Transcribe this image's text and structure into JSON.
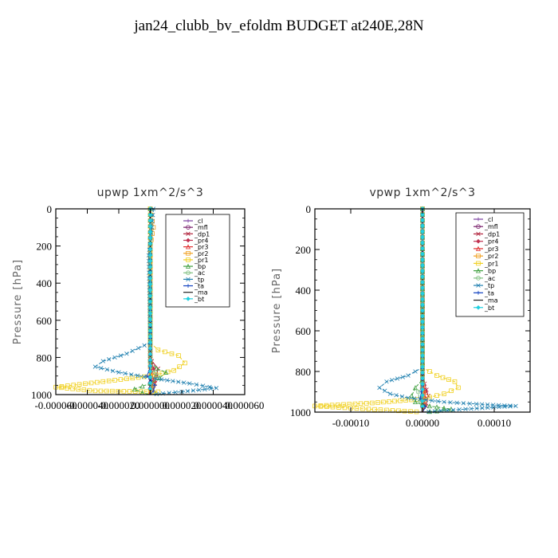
{
  "title": "jan24_clubb_bv_efoldm  BUDGET at240E,28N",
  "chart_data": [
    {
      "type": "line",
      "title": "upwp   1xm^2/s^3",
      "ylabel": "Pressure [hPa]",
      "ylim": [
        1000,
        0
      ],
      "xlim": [
        -6e-05,
        6e-05
      ],
      "xticks": [
        -6e-05,
        -4e-05,
        -2e-05,
        0,
        2e-05,
        4e-05,
        6e-05
      ],
      "xtick_labels": [
        "-0.000060",
        "-0.000040",
        "-0.000020",
        "0.000000",
        "0.000020",
        "0.000040",
        "0.000060"
      ],
      "yticks": [
        0,
        200,
        400,
        600,
        800,
        1000
      ],
      "legend": [
        "_cl",
        "_mfl",
        "_dp1",
        "_pr4",
        "_pr3",
        "_pr2",
        "_pr1",
        "_bp",
        "_ac",
        "_tp",
        "_ta",
        "_ma",
        "_bt"
      ],
      "legend_position": "top-right",
      "series": [
        {
          "name": "_cl",
          "color": "#7a3fa0",
          "x": [
            0,
            0,
            0,
            0,
            0
          ],
          "y": [
            0,
            250,
            500,
            750,
            1000
          ]
        },
        {
          "name": "_mfl",
          "color": "#7a1f6b",
          "x": [
            0,
            0,
            0,
            0,
            0
          ],
          "y": [
            0,
            250,
            500,
            750,
            1000
          ]
        },
        {
          "name": "_dp1",
          "color": "#b0203a",
          "x": [
            0,
            0,
            0,
            1e-06,
            5e-06,
            4e-06,
            3e-06,
            0,
            -1e-06
          ],
          "y": [
            0,
            600,
            780,
            820,
            860,
            900,
            940,
            980,
            1000
          ]
        },
        {
          "name": "_pr4",
          "color": "#c03050",
          "x": [
            0,
            0,
            2e-06,
            4e-06,
            2e-06,
            0
          ],
          "y": [
            0,
            800,
            860,
            900,
            960,
            1000
          ]
        },
        {
          "name": "_pr3",
          "color": "#e03030",
          "x": [
            0,
            0,
            1e-06,
            2e-06,
            1e-06,
            0
          ],
          "y": [
            0,
            800,
            880,
            920,
            970,
            1000
          ]
        },
        {
          "name": "_pr2",
          "color": "#f0a020",
          "x": [
            0,
            2e-06,
            0,
            0,
            2e-06,
            0
          ],
          "y": [
            0,
            100,
            200,
            850,
            950,
            1000
          ]
        },
        {
          "name": "_pr1",
          "color": "#f0d020",
          "x": [
            0,
            0,
            5e-06,
            1.8e-05,
            2.2e-05,
            1.5e-05,
            0,
            -3e-05,
            -6e-05,
            -3.5e-05,
            5e-06,
            0
          ],
          "y": [
            0,
            720,
            760,
            790,
            830,
            870,
            900,
            930,
            960,
            980,
            985,
            1000
          ]
        },
        {
          "name": "_bp",
          "color": "#40a040",
          "x": [
            0,
            0,
            4e-06,
            1e-05,
            6e-06,
            0,
            -1e-05,
            -5e-06,
            0
          ],
          "y": [
            0,
            820,
            860,
            880,
            910,
            940,
            970,
            990,
            1000
          ]
        },
        {
          "name": "_ac",
          "color": "#80c080",
          "x": [
            0,
            0,
            3e-06,
            4e-06,
            2e-06,
            0
          ],
          "y": [
            0,
            850,
            880,
            900,
            950,
            1000
          ]
        },
        {
          "name": "_tp",
          "color": "#2080b0",
          "x": [
            2e-06,
            1e-06,
            -1e-06,
            0,
            -1.5e-05,
            -3e-05,
            -3.5e-05,
            -2e-05,
            0,
            2.5e-05,
            4.2e-05,
            2e-05,
            0
          ],
          "y": [
            0,
            100,
            250,
            720,
            780,
            820,
            850,
            880,
            910,
            940,
            965,
            985,
            1000
          ]
        },
        {
          "name": "_ta",
          "color": "#1040c0",
          "x": [
            0,
            0,
            -2e-06,
            3e-06,
            2e-06,
            0
          ],
          "y": [
            0,
            850,
            900,
            950,
            980,
            1000
          ]
        },
        {
          "name": "_ma",
          "color": "#202020",
          "x": [
            0,
            0,
            0
          ],
          "y": [
            0,
            500,
            1000
          ]
        },
        {
          "name": "_bt",
          "color": "#20d0e0",
          "x": [
            0,
            0,
            0
          ],
          "y": [
            0,
            500,
            1000
          ]
        }
      ]
    },
    {
      "type": "line",
      "title": "vpwp   1xm^2/s^3",
      "ylabel": "Pressure [hPa]",
      "ylim": [
        1000,
        0
      ],
      "xlim": [
        -0.00015,
        0.00015
      ],
      "xticks": [
        -0.0001,
        0,
        0.0001
      ],
      "xtick_labels": [
        "-0.00010",
        "0.00000",
        "0.00010"
      ],
      "yticks": [
        0,
        200,
        400,
        600,
        800,
        1000
      ],
      "legend": [
        "_cl",
        "_mfl",
        "_dp1",
        "_pr4",
        "_pr3",
        "_pr2",
        "_pr1",
        "_bp",
        "_ac",
        "_tp",
        "_ta",
        "_ma",
        "_bt"
      ],
      "legend_position": "top-right",
      "series": [
        {
          "name": "_cl",
          "color": "#7a3fa0",
          "x": [
            0,
            0,
            0,
            0,
            0
          ],
          "y": [
            0,
            250,
            500,
            750,
            1000
          ]
        },
        {
          "name": "_mfl",
          "color": "#7a1f6b",
          "x": [
            0,
            0,
            0,
            0,
            0
          ],
          "y": [
            0,
            250,
            500,
            750,
            1000
          ]
        },
        {
          "name": "_dp1",
          "color": "#b0203a",
          "x": [
            0,
            0,
            3e-06,
            8e-06,
            5e-06,
            0
          ],
          "y": [
            0,
            820,
            860,
            920,
            970,
            1000
          ]
        },
        {
          "name": "_pr4",
          "color": "#c03050",
          "x": [
            0,
            0,
            4e-06,
            3e-06,
            0
          ],
          "y": [
            0,
            850,
            900,
            960,
            1000
          ]
        },
        {
          "name": "_pr3",
          "color": "#e03030",
          "x": [
            0,
            0,
            2e-06,
            0
          ],
          "y": [
            0,
            870,
            930,
            1000
          ]
        },
        {
          "name": "_pr2",
          "color": "#f0a020",
          "x": [
            0,
            0,
            3e-06,
            0
          ],
          "y": [
            0,
            870,
            940,
            1000
          ]
        },
        {
          "name": "_pr1",
          "color": "#f0d020",
          "x": [
            0,
            0,
            2e-05,
            4.5e-05,
            5e-05,
            3e-05,
            0,
            -7e-05,
            -0.00015,
            -0.0001,
            -5e-05,
            0
          ],
          "y": [
            0,
            780,
            820,
            850,
            880,
            910,
            935,
            955,
            970,
            980,
            990,
            1000
          ]
        },
        {
          "name": "_bp",
          "color": "#40a040",
          "x": [
            0,
            0,
            -1e-05,
            -1.5e-05,
            -1e-05,
            1e-05,
            4e-05,
            2e-05,
            0
          ],
          "y": [
            0,
            840,
            880,
            920,
            950,
            970,
            985,
            995,
            1000
          ]
        },
        {
          "name": "_ac",
          "color": "#80c080",
          "x": [
            0,
            0,
            -6e-06,
            -4e-06,
            0
          ],
          "y": [
            0,
            860,
            900,
            950,
            1000
          ]
        },
        {
          "name": "_tp",
          "color": "#2080b0",
          "x": [
            0,
            0,
            -2e-05,
            -5e-05,
            -6e-05,
            -4.5e-05,
            -2e-05,
            3e-05,
            7.5e-05,
            0.00013,
            6e-05,
            0
          ],
          "y": [
            0,
            780,
            820,
            850,
            880,
            910,
            930,
            950,
            960,
            970,
            985,
            1000
          ]
        },
        {
          "name": "_ta",
          "color": "#1040c0",
          "x": [
            0,
            0,
            -3e-06,
            4e-06,
            0
          ],
          "y": [
            0,
            870,
            930,
            975,
            1000
          ]
        },
        {
          "name": "_ma",
          "color": "#202020",
          "x": [
            0,
            0,
            0
          ],
          "y": [
            0,
            500,
            1000
          ]
        },
        {
          "name": "_bt",
          "color": "#20d0e0",
          "x": [
            0,
            0,
            0
          ],
          "y": [
            0,
            500,
            1000
          ]
        }
      ]
    }
  ]
}
